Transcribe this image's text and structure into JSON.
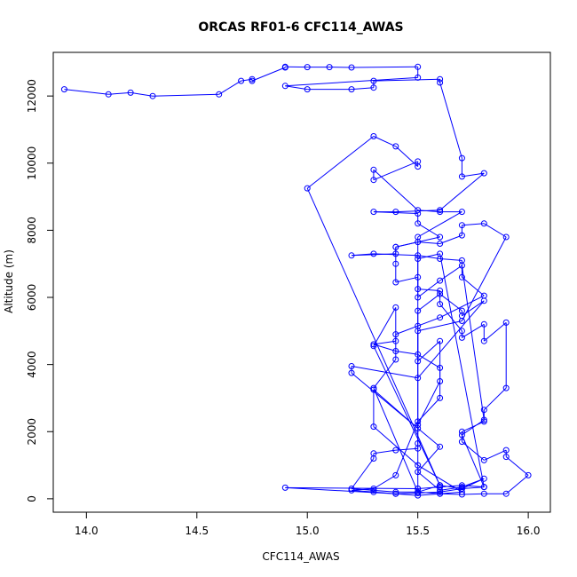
{
  "chart_data": {
    "type": "line",
    "title": "ORCAS RF01-6 CFC114_AWAS",
    "xlabel": "CFC114_AWAS",
    "ylabel": "Altitude (m)",
    "xlim": [
      13.85,
      16.1
    ],
    "ylim": [
      -400,
      13300
    ],
    "xticks": [
      14.0,
      14.5,
      15.0,
      15.5,
      16.0
    ],
    "xtick_labels": [
      "14.0",
      "14.5",
      "15.0",
      "15.5",
      "16.0"
    ],
    "yticks": [
      0,
      2000,
      4000,
      6000,
      8000,
      10000,
      12000
    ],
    "ytick_labels": [
      "0",
      "2000",
      "4000",
      "6000",
      "8000",
      "10000",
      "12000"
    ],
    "grid": false,
    "marker": "open-circle",
    "series": [
      {
        "color": "#0000ff",
        "points": [
          [
            13.9,
            12200
          ],
          [
            14.1,
            12050
          ],
          [
            14.2,
            12100
          ],
          [
            14.3,
            12000
          ],
          [
            14.6,
            12050
          ],
          [
            14.7,
            12450
          ],
          [
            14.75,
            12500
          ],
          [
            14.75,
            12450
          ],
          [
            14.9,
            12850
          ],
          [
            14.9,
            12870
          ],
          [
            15.0,
            12860
          ],
          [
            15.1,
            12860
          ],
          [
            15.2,
            12850
          ],
          [
            15.5,
            12870
          ],
          [
            15.5,
            12550
          ],
          [
            14.9,
            12300
          ],
          [
            15.0,
            12200
          ],
          [
            15.2,
            12200
          ],
          [
            15.3,
            12250
          ],
          [
            15.3,
            12450
          ],
          [
            15.6,
            12500
          ],
          [
            15.6,
            12400
          ],
          [
            15.7,
            10150
          ],
          [
            15.7,
            9600
          ],
          [
            15.8,
            9700
          ],
          [
            15.6,
            8600
          ],
          [
            15.4,
            8550
          ],
          [
            15.3,
            8550
          ],
          [
            15.5,
            8500
          ],
          [
            15.5,
            8200
          ],
          [
            15.6,
            7800
          ],
          [
            15.4,
            7500
          ],
          [
            15.4,
            7300
          ],
          [
            15.2,
            7250
          ],
          [
            15.3,
            7300
          ],
          [
            15.5,
            7250
          ],
          [
            15.6,
            7150
          ],
          [
            15.7,
            7100
          ],
          [
            15.7,
            6600
          ],
          [
            15.8,
            6050
          ],
          [
            15.6,
            5400
          ],
          [
            15.4,
            4900
          ],
          [
            15.4,
            4700
          ],
          [
            15.3,
            4600
          ],
          [
            15.4,
            4400
          ],
          [
            15.5,
            4300
          ],
          [
            15.6,
            3900
          ],
          [
            15.6,
            3500
          ],
          [
            15.5,
            2200
          ],
          [
            15.5,
            1650
          ],
          [
            15.5,
            1500
          ],
          [
            15.4,
            1450
          ],
          [
            15.3,
            1350
          ],
          [
            15.3,
            1200
          ],
          [
            15.2,
            300
          ],
          [
            15.3,
            250
          ],
          [
            15.4,
            200
          ],
          [
            15.5,
            200
          ],
          [
            15.6,
            150
          ],
          [
            15.7,
            130
          ],
          [
            15.8,
            150
          ],
          [
            15.9,
            150
          ],
          [
            16.0,
            700
          ],
          [
            15.9,
            1250
          ],
          [
            15.9,
            1450
          ],
          [
            15.8,
            1150
          ],
          [
            15.7,
            1700
          ],
          [
            15.7,
            2000
          ],
          [
            15.8,
            2300
          ],
          [
            15.8,
            2650
          ],
          [
            15.9,
            3300
          ],
          [
            15.9,
            5250
          ],
          [
            15.8,
            4700
          ],
          [
            15.8,
            5200
          ],
          [
            15.7,
            4800
          ],
          [
            15.7,
            5000
          ],
          [
            15.6,
            5800
          ],
          [
            15.6,
            6200
          ],
          [
            15.5,
            6250
          ],
          [
            15.5,
            6600
          ],
          [
            15.4,
            6450
          ],
          [
            15.4,
            7000
          ],
          [
            15.4,
            7500
          ],
          [
            15.5,
            7650
          ],
          [
            15.6,
            7600
          ],
          [
            15.7,
            7850
          ],
          [
            15.7,
            8150
          ],
          [
            15.8,
            8200
          ],
          [
            15.9,
            7800
          ],
          [
            15.7,
            5300
          ],
          [
            15.5,
            5000
          ],
          [
            15.5,
            4100
          ],
          [
            15.6,
            4700
          ],
          [
            15.6,
            3000
          ],
          [
            15.5,
            2300
          ],
          [
            15.4,
            700
          ],
          [
            15.3,
            300
          ],
          [
            15.2,
            250
          ],
          [
            15.3,
            200
          ],
          [
            15.4,
            150
          ],
          [
            15.5,
            170
          ],
          [
            15.6,
            200
          ],
          [
            15.7,
            300
          ],
          [
            15.8,
            350
          ],
          [
            15.7,
            400
          ],
          [
            15.6,
            350
          ],
          [
            15.5,
            300
          ],
          [
            14.9,
            330
          ],
          [
            15.4,
            150
          ],
          [
            15.5,
            100
          ],
          [
            15.6,
            150
          ],
          [
            15.7,
            200
          ],
          [
            15.5,
            1000
          ],
          [
            15.3,
            2150
          ],
          [
            15.3,
            3250
          ],
          [
            15.5,
            2100
          ],
          [
            15.5,
            5150
          ],
          [
            15.5,
            5600
          ],
          [
            15.6,
            6100
          ],
          [
            15.7,
            5600
          ],
          [
            15.7,
            5450
          ],
          [
            15.8,
            5900
          ],
          [
            15.5,
            3600
          ],
          [
            15.2,
            3950
          ],
          [
            15.2,
            3750
          ],
          [
            15.6,
            1550
          ],
          [
            15.5,
            800
          ],
          [
            15.6,
            250
          ],
          [
            15.7,
            350
          ],
          [
            15.8,
            600
          ],
          [
            15.7,
            300
          ],
          [
            15.6,
            400
          ],
          [
            15.5,
            200
          ],
          [
            15.3,
            3300
          ],
          [
            15.4,
            4150
          ],
          [
            15.4,
            5700
          ],
          [
            15.3,
            4550
          ],
          [
            15.6,
            400
          ],
          [
            15.0,
            9250
          ],
          [
            15.3,
            10800
          ],
          [
            15.4,
            10500
          ],
          [
            15.5,
            9900
          ],
          [
            15.5,
            10050
          ],
          [
            15.3,
            9500
          ],
          [
            15.3,
            9800
          ],
          [
            15.5,
            8600
          ],
          [
            15.6,
            8550
          ],
          [
            15.7,
            8550
          ],
          [
            15.5,
            7800
          ],
          [
            15.5,
            6000
          ],
          [
            15.6,
            6500
          ],
          [
            15.7,
            6950
          ],
          [
            15.8,
            2350
          ],
          [
            15.7,
            1900
          ],
          [
            15.8,
            350
          ],
          [
            15.6,
            7300
          ],
          [
            15.5,
            7150
          ],
          [
            15.5,
            300
          ]
        ]
      }
    ]
  }
}
